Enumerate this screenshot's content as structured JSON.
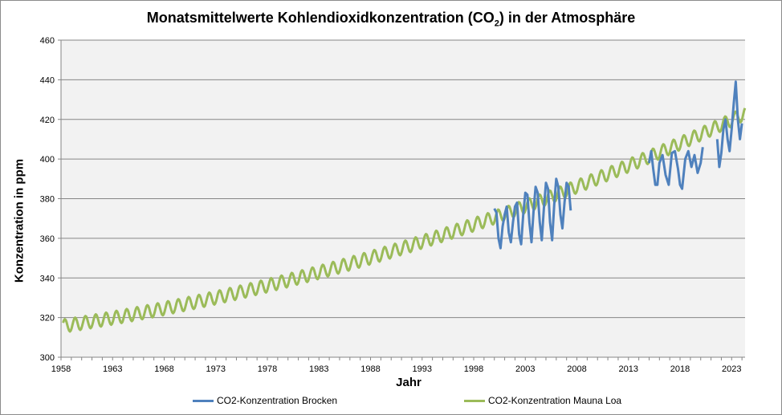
{
  "chart_data": {
    "type": "line",
    "title_main": "Monatsmittelwerte  Kohlendioxidkonzentration  (CO",
    "title_sub": "2",
    "title_end": ") in der Atmosphäre",
    "xlabel": "Jahr",
    "ylabel": "Konzentration in ppm",
    "xlim": [
      1958,
      2024.3
    ],
    "ylim": [
      300,
      460
    ],
    "x_ticks": [
      "1958",
      "1963",
      "1968",
      "1973",
      "1978",
      "1983",
      "1988",
      "1993",
      "1998",
      "2003",
      "2008",
      "2013",
      "2018",
      "2023"
    ],
    "y_ticks": [
      "300",
      "320",
      "340",
      "360",
      "380",
      "400",
      "420",
      "440",
      "460"
    ],
    "grid": "horizontal",
    "legend_position": "bottom",
    "plot_background": "#f2f2f2",
    "series": [
      {
        "name": "CO2-Konzentration Brocken",
        "color": "#4f81bd",
        "description": "monthly means, measured at Brocken station",
        "segments": [
          [
            [
              2000.0,
              375
            ],
            [
              2000.2,
              373
            ],
            [
              2000.4,
              360
            ],
            [
              2000.6,
              355
            ],
            [
              2000.8,
              366
            ],
            [
              2001.0,
              372
            ],
            [
              2001.2,
              376
            ],
            [
              2001.4,
              363
            ],
            [
              2001.6,
              358
            ],
            [
              2001.8,
              368
            ],
            [
              2002.0,
              376
            ],
            [
              2002.2,
              378
            ],
            [
              2002.4,
              362
            ],
            [
              2002.6,
              357
            ],
            [
              2002.8,
              372
            ],
            [
              2003.0,
              383
            ],
            [
              2003.2,
              382
            ],
            [
              2003.4,
              368
            ],
            [
              2003.6,
              358
            ],
            [
              2003.8,
              374
            ],
            [
              2004.0,
              386
            ],
            [
              2004.2,
              383
            ],
            [
              2004.4,
              368
            ],
            [
              2004.6,
              359
            ],
            [
              2004.8,
              375
            ],
            [
              2005.0,
              388
            ],
            [
              2005.2,
              385
            ],
            [
              2005.4,
              368
            ],
            [
              2005.6,
              359
            ],
            [
              2005.8,
              377
            ],
            [
              2006.0,
              390
            ],
            [
              2006.2,
              386
            ],
            [
              2006.4,
              372
            ],
            [
              2006.6,
              365
            ],
            [
              2006.8,
              378
            ],
            [
              2007.0,
              388
            ],
            [
              2007.2,
              386
            ],
            [
              2007.4,
              374
            ]
          ],
          [
            [
              2015.0,
              398
            ],
            [
              2015.2,
              404
            ],
            [
              2015.4,
              395
            ],
            [
              2015.6,
              387
            ],
            [
              2015.8,
              387
            ],
            [
              2016.0,
              398
            ],
            [
              2016.3,
              402
            ],
            [
              2016.6,
              392
            ],
            [
              2016.9,
              387
            ],
            [
              2017.2,
              403
            ],
            [
              2017.5,
              404
            ],
            [
              2017.8,
              395
            ],
            [
              2018.0,
              387
            ],
            [
              2018.2,
              385
            ],
            [
              2018.5,
              400
            ],
            [
              2018.8,
              404
            ],
            [
              2019.1,
              396
            ],
            [
              2019.4,
              402
            ],
            [
              2019.7,
              393
            ],
            [
              2020.0,
              398
            ],
            [
              2020.2,
              406
            ]
          ],
          [
            [
              2021.6,
              410
            ],
            [
              2021.8,
              396
            ],
            [
              2022.0,
              403
            ],
            [
              2022.2,
              415
            ],
            [
              2022.4,
              420
            ],
            [
              2022.6,
              410
            ],
            [
              2022.8,
              404
            ],
            [
              2023.0,
              415
            ],
            [
              2023.2,
              428
            ],
            [
              2023.4,
              439
            ],
            [
              2023.6,
              420
            ],
            [
              2023.8,
              410
            ],
            [
              2024.0,
              418
            ]
          ]
        ]
      },
      {
        "name": "CO2-Konzentration Mauna Loa",
        "color": "#9bbb59",
        "description": "monthly means, Keeling curve with seasonal cycle, 1958-2024",
        "model": "y = 315.6 + 0.77*(x-1958) + 0.0128*(x-1958)^2 + seasonal amplitude ~3.3 ppm"
      }
    ]
  }
}
